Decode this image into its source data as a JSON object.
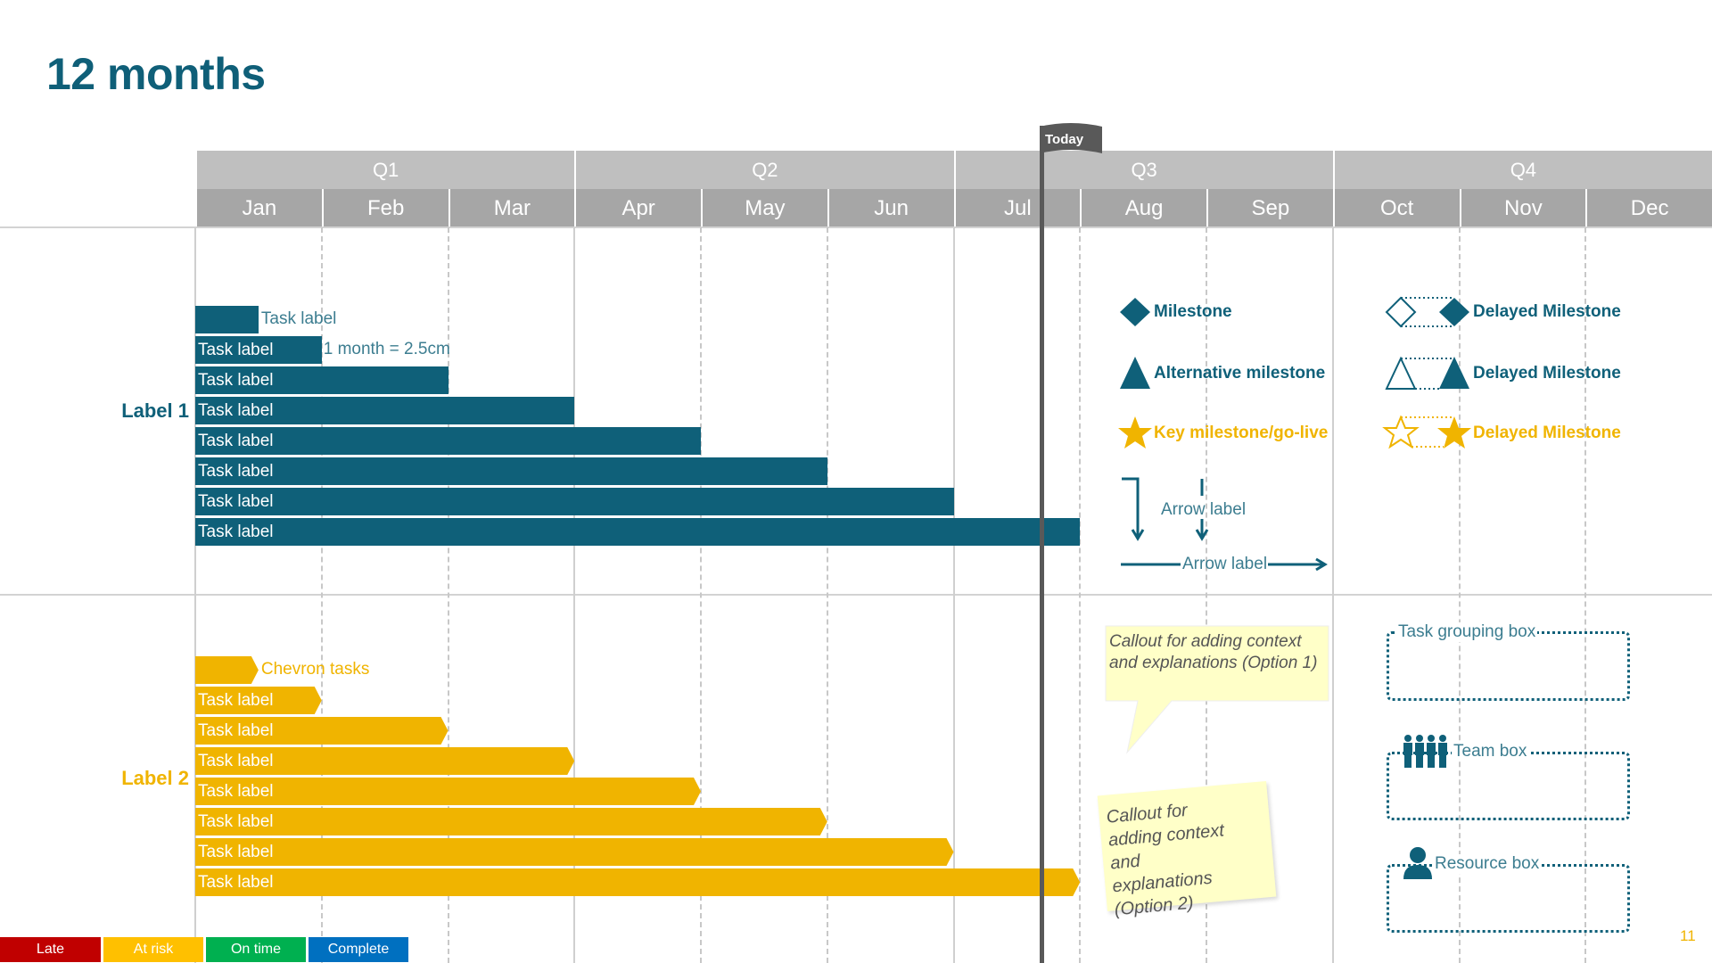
{
  "title": "12 months",
  "today_label": "Today",
  "quarters": [
    "Q1",
    "Q2",
    "Q3",
    "Q4"
  ],
  "months": [
    "Jan",
    "Feb",
    "Mar",
    "Apr",
    "May",
    "Jun",
    "Jul",
    "Aug",
    "Sep",
    "Oct",
    "Nov",
    "Dec"
  ],
  "today_month_position": 6.7,
  "colors": {
    "teal": "#0f6079",
    "gold": "#f0b400",
    "late": "#c00000",
    "at_risk": "#ffc000",
    "on_time": "#00b050",
    "complete": "#0070c0"
  },
  "groups": [
    {
      "label": "Label 1",
      "color": "teal",
      "shape": "rectangle",
      "tasks": [
        {
          "label": "Task label",
          "end_month": 0.5,
          "label_outside": true
        },
        {
          "label": "Task label",
          "end_month": 1,
          "note": "1 month = 2.5cm"
        },
        {
          "label": "Task label",
          "end_month": 2
        },
        {
          "label": "Task label",
          "end_month": 3
        },
        {
          "label": "Task label",
          "end_month": 4
        },
        {
          "label": "Task label",
          "end_month": 5
        },
        {
          "label": "Task label",
          "end_month": 6
        },
        {
          "label": "Task label",
          "end_month": 7
        }
      ]
    },
    {
      "label": "Label 2",
      "color": "gold",
      "shape": "chevron",
      "tasks": [
        {
          "label": "Chevron tasks",
          "end_month": 0.5,
          "label_outside": true
        },
        {
          "label": "Task label",
          "end_month": 1
        },
        {
          "label": "Task label",
          "end_month": 2
        },
        {
          "label": "Task label",
          "end_month": 3
        },
        {
          "label": "Task label",
          "end_month": 4
        },
        {
          "label": "Task label",
          "end_month": 5
        },
        {
          "label": "Task label",
          "end_month": 6
        },
        {
          "label": "Task label",
          "end_month": 7
        }
      ]
    }
  ],
  "legend": {
    "milestone": "Milestone",
    "alt_milestone": "Alternative milestone",
    "key_milestone": "Key milestone/go-live",
    "delayed_1": "Delayed Milestone",
    "delayed_2": "Delayed Milestone",
    "delayed_3": "Delayed Milestone",
    "arrow_label_v": "Arrow label",
    "arrow_label_h": "Arrow label",
    "callout1": "Callout for adding context and explanations (Option 1)",
    "callout2": "Callout for adding context and explanations (Option 2)",
    "task_grouping": "Task grouping box",
    "team_box": "Team box",
    "resource_box": "Resource box"
  },
  "status_legend": [
    "Late",
    "At risk",
    "On time",
    "Complete"
  ],
  "page_number": "11"
}
